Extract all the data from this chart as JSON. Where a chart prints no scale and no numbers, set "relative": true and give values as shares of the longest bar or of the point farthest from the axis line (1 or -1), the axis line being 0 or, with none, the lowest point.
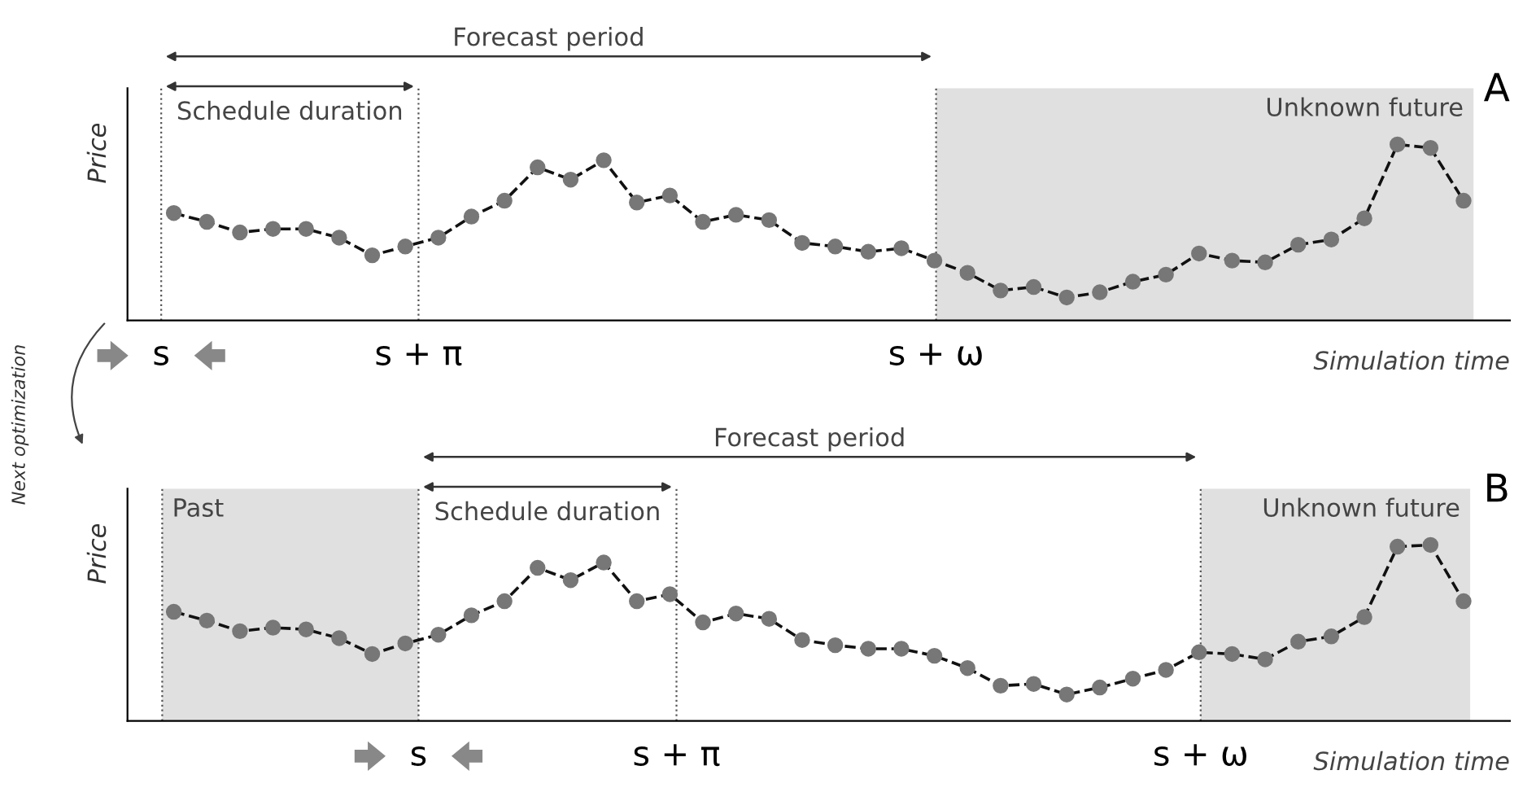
{
  "chart_data": [
    {
      "type": "line",
      "title": "A",
      "xlabel": "Simulation time",
      "ylabel": "Price",
      "relative": true,
      "marker": "circle",
      "line_style": "dashed",
      "legend": false,
      "grid": false,
      "categories": [
        null,
        null,
        null,
        null,
        null,
        null,
        null,
        null,
        null,
        null,
        null,
        null,
        null,
        null,
        null,
        null,
        null,
        null,
        null,
        null,
        null,
        null,
        null,
        null,
        null,
        null,
        null,
        null,
        null,
        null,
        null,
        null,
        null,
        null,
        null,
        null,
        null,
        null,
        null,
        null
      ],
      "series": [
        {
          "color": "#111111",
          "values": [
            0.61,
            0.56,
            0.5,
            0.52,
            0.52,
            0.47,
            0.37,
            0.42,
            0.47,
            0.59,
            0.68,
            0.87,
            0.8,
            0.91,
            0.67,
            0.71,
            0.56,
            0.6,
            0.57,
            0.44,
            0.42,
            0.39,
            0.41,
            0.34,
            0.27,
            0.17,
            0.19,
            0.13,
            0.16,
            0.22,
            0.26,
            0.38,
            0.34,
            0.33,
            0.43,
            0.46,
            0.58,
            1.0,
            0.98,
            0.68
          ]
        }
      ],
      "annotations": [
        "Forecast period",
        "Schedule duration",
        "Unknown future",
        "s",
        "s + π",
        "s + ω",
        "Next optimization"
      ]
    },
    {
      "type": "line",
      "title": "B",
      "xlabel": "Simulation time",
      "ylabel": "Price",
      "relative": true,
      "marker": "circle",
      "line_style": "dashed",
      "legend": false,
      "grid": false,
      "categories": [
        null,
        null,
        null,
        null,
        null,
        null,
        null,
        null,
        null,
        null,
        null,
        null,
        null,
        null,
        null,
        null,
        null,
        null,
        null,
        null,
        null,
        null,
        null,
        null,
        null,
        null,
        null,
        null,
        null,
        null,
        null,
        null,
        null,
        null,
        null,
        null,
        null,
        null,
        null,
        null
      ],
      "series": [
        {
          "color": "#111111",
          "values": [
            0.62,
            0.57,
            0.51,
            0.53,
            0.52,
            0.47,
            0.38,
            0.44,
            0.49,
            0.6,
            0.68,
            0.87,
            0.8,
            0.9,
            0.68,
            0.72,
            0.56,
            0.61,
            0.58,
            0.46,
            0.43,
            0.41,
            0.41,
            0.37,
            0.3,
            0.2,
            0.21,
            0.15,
            0.19,
            0.24,
            0.29,
            0.39,
            0.38,
            0.35,
            0.45,
            0.48,
            0.59,
            0.99,
            1.0,
            0.68
          ]
        }
      ],
      "annotations": [
        "Forecast period",
        "Schedule duration",
        "Past",
        "Unknown future",
        "s",
        "s + π",
        "s + ω"
      ]
    }
  ]
}
